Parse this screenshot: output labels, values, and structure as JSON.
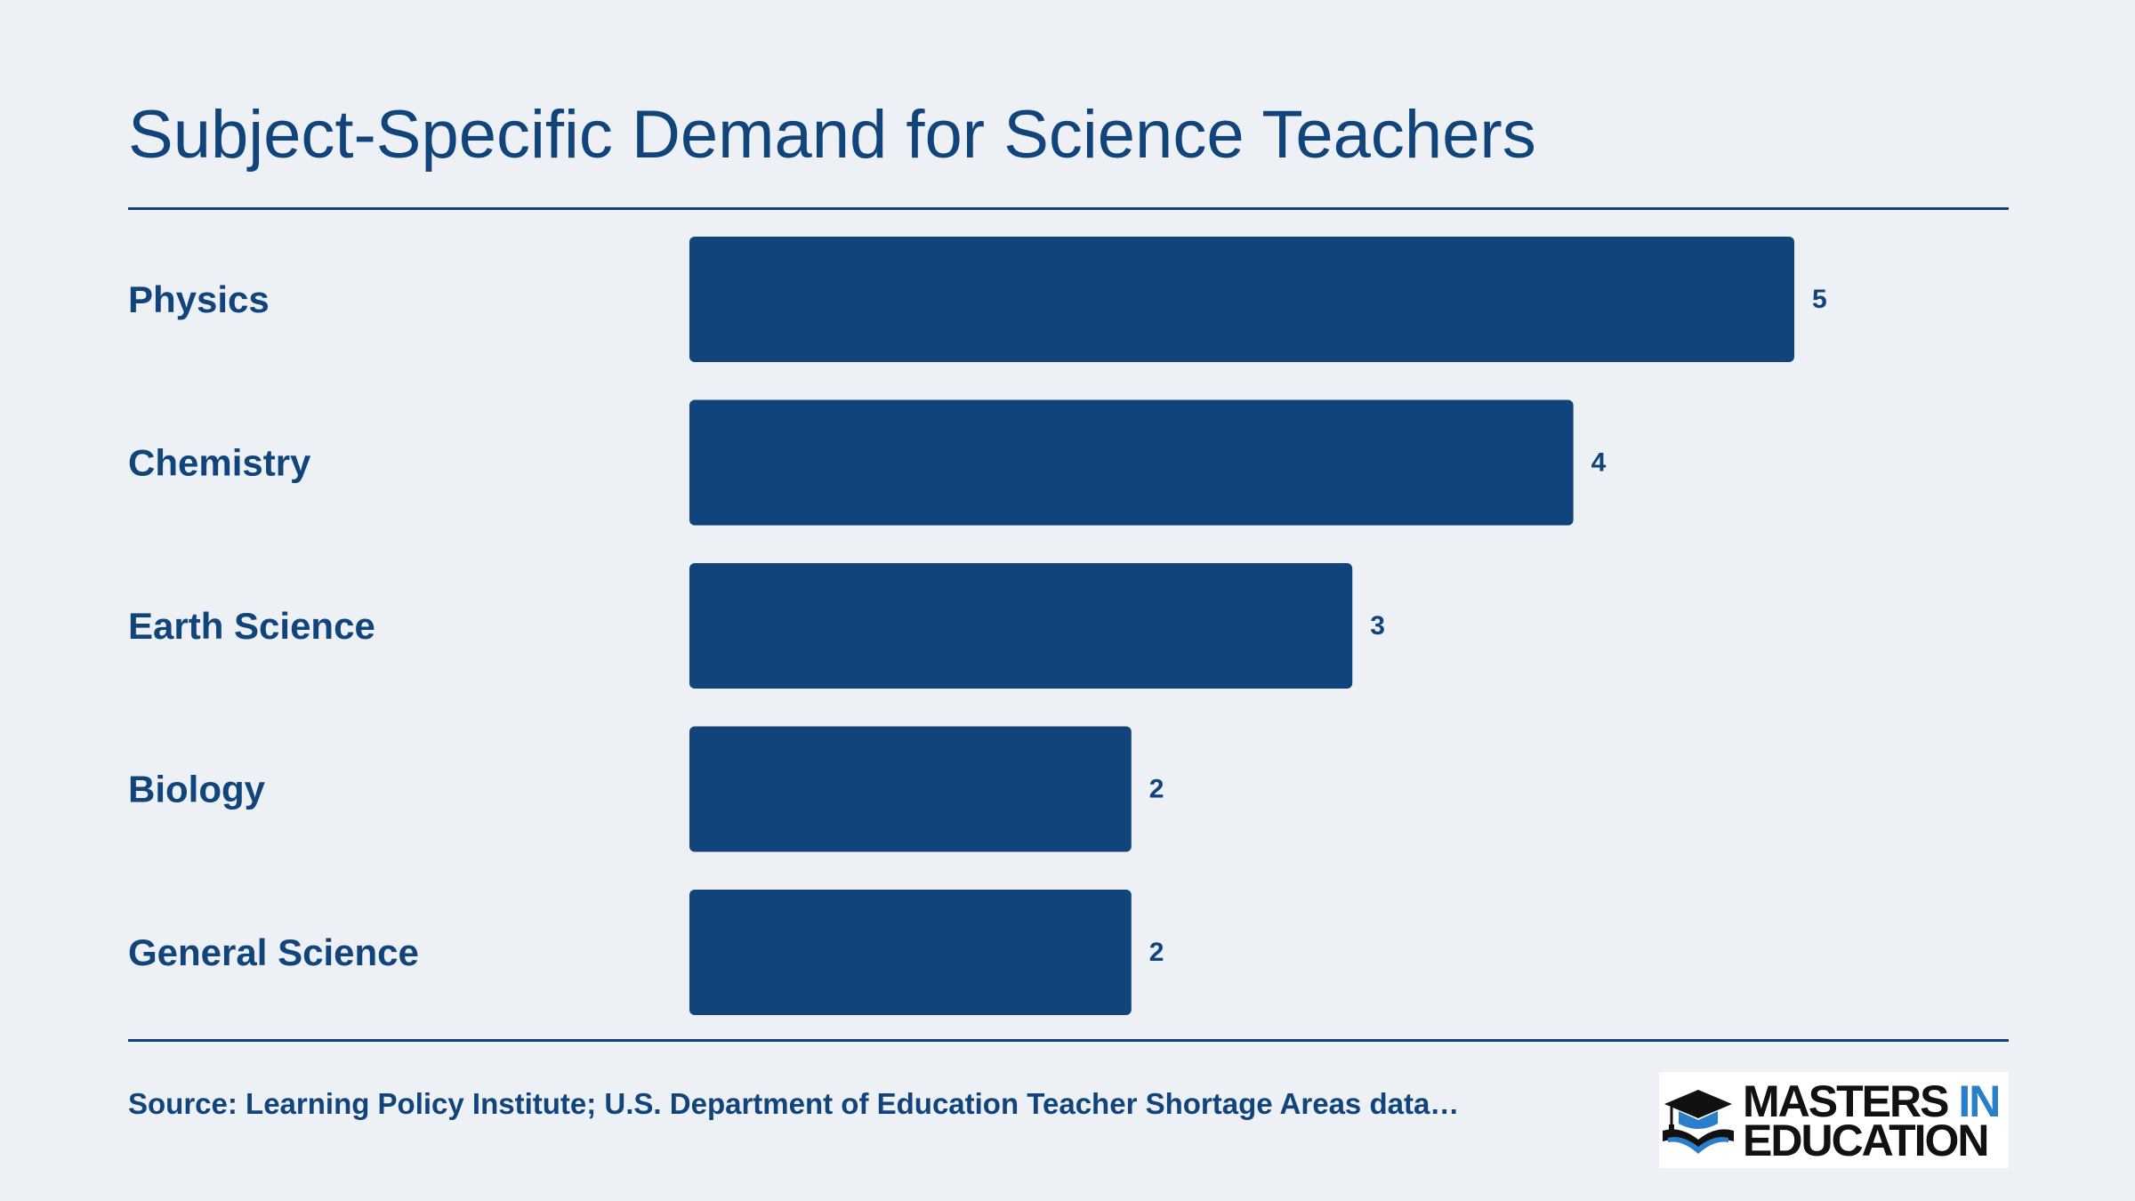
{
  "chart_data": {
    "type": "bar",
    "orientation": "horizontal",
    "title": "Subject-Specific Demand for Science Teachers",
    "categories": [
      "Physics",
      "Chemistry",
      "Earth Science",
      "Biology",
      "General Science"
    ],
    "values": [
      5,
      4,
      3,
      2,
      2
    ],
    "xlim": [
      0,
      5
    ],
    "grid": false,
    "legend": "none",
    "bar_color": "#11447a"
  },
  "source": "Source: Learning Policy Institute; U.S. Department of Education Teacher Shortage Areas data…",
  "logo": {
    "line1": "MASTERS",
    "line1_accent": "IN",
    "line2": "EDUCATION",
    "icon": "graduation-cap-book-icon"
  },
  "colors": {
    "background": "#edf0f5",
    "primary": "#11447a",
    "logo_accent": "#2a7fc9"
  }
}
